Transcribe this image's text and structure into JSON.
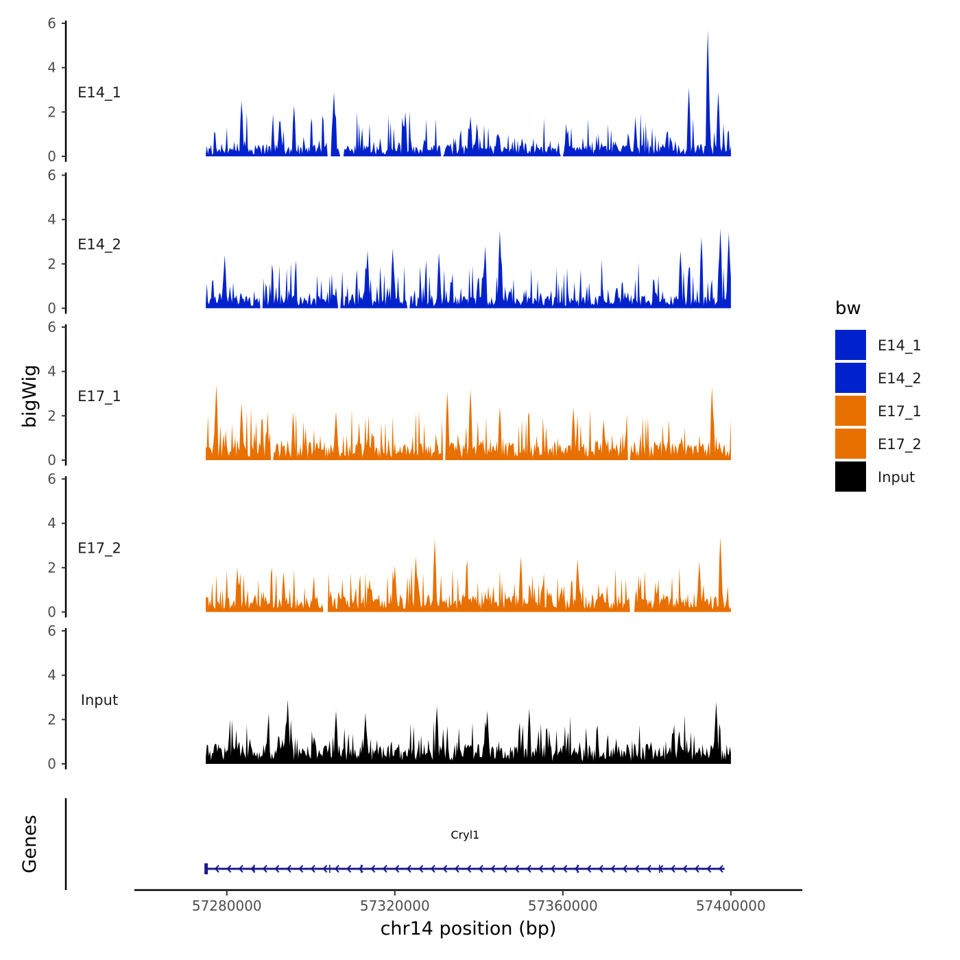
{
  "chart_data": {
    "type": "area",
    "y_axis_title": "bigWig",
    "x_axis_title": "chr14 position (bp)",
    "genes_axis_title": "Genes",
    "xlim": [
      57258000,
      57417000
    ],
    "data_range": [
      57275000,
      57400000
    ],
    "x_ticks": [
      57280000,
      57320000,
      57360000,
      57400000
    ],
    "x_tick_labels": [
      "57280000",
      "57320000",
      "57360000",
      "57400000"
    ],
    "ylim": [
      0,
      6
    ],
    "y_ticks": [
      0,
      2,
      4,
      6
    ],
    "y_tick_labels": [
      "0",
      "2",
      "4",
      "6"
    ],
    "bin_size_bp": 250,
    "legend": {
      "title": "bw",
      "entries": [
        {
          "label": "E14_1",
          "color": "#0022cc"
        },
        {
          "label": "E14_2",
          "color": "#0022cc"
        },
        {
          "label": "E17_1",
          "color": "#e87000"
        },
        {
          "label": "E17_2",
          "color": "#e87000"
        },
        {
          "label": "Input",
          "color": "#000000"
        }
      ]
    },
    "series": [
      {
        "name": "E14_1",
        "color": "#0022cc",
        "base_level": 0.5,
        "variability": 0.75,
        "peaks": [
          [
            57283500,
            2.5
          ],
          [
            57296000,
            2.3
          ],
          [
            57305500,
            2.9
          ],
          [
            57322500,
            2.0
          ],
          [
            57338000,
            1.8
          ],
          [
            57390000,
            3.1
          ],
          [
            57394500,
            5.7
          ],
          [
            57397000,
            2.9
          ]
        ],
        "gaps": [
          [
            57304000,
            57304800
          ],
          [
            57307000,
            57307800
          ],
          [
            57331000,
            57331600
          ],
          [
            57359500,
            57360000
          ]
        ]
      },
      {
        "name": "E14_2",
        "color": "#0022cc",
        "base_level": 0.55,
        "variability": 0.8,
        "peaks": [
          [
            57279500,
            2.4
          ],
          [
            57313500,
            2.6
          ],
          [
            57319500,
            2.7
          ],
          [
            57330500,
            2.5
          ],
          [
            57341500,
            2.8
          ],
          [
            57345000,
            3.5
          ],
          [
            57388000,
            2.6
          ],
          [
            57393000,
            3.2
          ],
          [
            57397500,
            3.6
          ],
          [
            57399500,
            3.4
          ]
        ],
        "gaps": [
          [
            57288000,
            57288700
          ],
          [
            57306500,
            57307200
          ],
          [
            57323000,
            57323600
          ]
        ]
      },
      {
        "name": "E17_1",
        "color": "#e87000",
        "base_level": 0.75,
        "variability": 0.75,
        "peaks": [
          [
            57277500,
            3.4
          ],
          [
            57283500,
            2.6
          ],
          [
            57306000,
            2.2
          ],
          [
            57332500,
            3.1
          ],
          [
            57338000,
            3.2
          ],
          [
            57345000,
            2.4
          ],
          [
            57362500,
            2.4
          ],
          [
            57395500,
            3.3
          ]
        ],
        "gaps": [
          [
            57290500,
            57291200
          ],
          [
            57331500,
            57332000
          ],
          [
            57375500,
            57376000
          ]
        ]
      },
      {
        "name": "E17_2",
        "color": "#e87000",
        "base_level": 0.7,
        "variability": 0.75,
        "peaks": [
          [
            57282500,
            2.0
          ],
          [
            57293500,
            1.8
          ],
          [
            57314000,
            1.5
          ],
          [
            57320000,
            2.1
          ],
          [
            57325000,
            2.5
          ],
          [
            57329500,
            3.3
          ],
          [
            57350000,
            2.5
          ],
          [
            57363500,
            2.4
          ],
          [
            57392500,
            2.3
          ],
          [
            57397500,
            3.4
          ]
        ],
        "gaps": [
          [
            57303000,
            57304000
          ],
          [
            57376000,
            57377000
          ]
        ]
      },
      {
        "name": "Input",
        "color": "#000000",
        "base_level": 0.85,
        "variability": 0.65,
        "peaks": [
          [
            57294500,
            2.9
          ],
          [
            57306000,
            2.4
          ],
          [
            57313000,
            2.3
          ],
          [
            57330000,
            2.6
          ],
          [
            57342000,
            2.4
          ],
          [
            57352000,
            2.5
          ],
          [
            57396500,
            2.8
          ]
        ],
        "gaps": []
      }
    ],
    "gene_track": {
      "gene_name": "Cryl1",
      "strand": "-",
      "start": 57275000,
      "end": 57398500,
      "color": "#1a1a8c"
    }
  }
}
